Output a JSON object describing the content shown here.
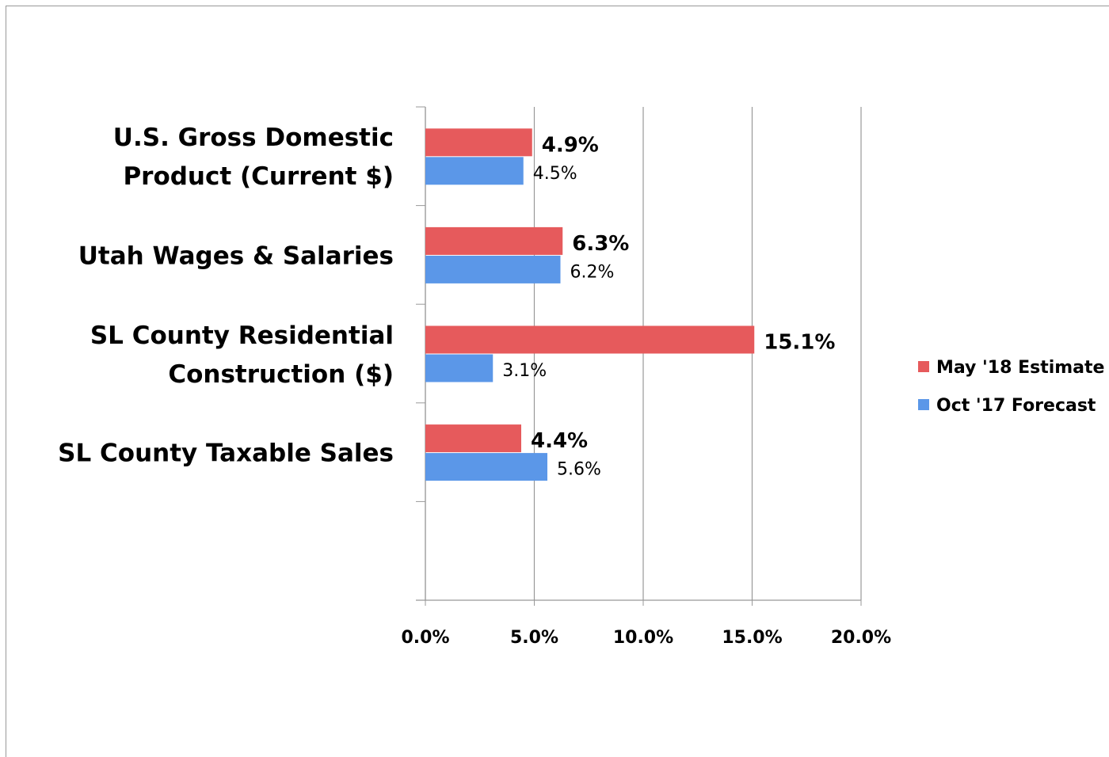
{
  "chart_data": {
    "type": "hbar",
    "categories": [
      "U.S. Gross Domestic Product (Current $)",
      "Utah Wages & Salaries",
      "SL County Residential Construction ($)",
      "SL County Taxable Sales"
    ],
    "series": [
      {
        "name": "May '18 Estimate",
        "color": "#e65a5c",
        "values": [
          4.9,
          6.3,
          15.1,
          4.4
        ],
        "value_labels": [
          "4.9%",
          "6.3%",
          "15.1%",
          "4.4%"
        ]
      },
      {
        "name": "Oct '17 Forecast",
        "color": "#5b97e8",
        "values": [
          4.5,
          6.2,
          3.1,
          5.6
        ],
        "value_labels": [
          "4.5%",
          "6.2%",
          "3.1%",
          "5.6%"
        ]
      }
    ],
    "xlim": [
      0,
      20
    ],
    "xticks": [
      {
        "value": 0,
        "label": "0.0%"
      },
      {
        "value": 5,
        "label": "5.0%"
      },
      {
        "value": 10,
        "label": "10.0%"
      },
      {
        "value": 15,
        "label": "15.0%"
      },
      {
        "value": 20,
        "label": "20.0%"
      }
    ],
    "grid": true,
    "legend": "right"
  }
}
